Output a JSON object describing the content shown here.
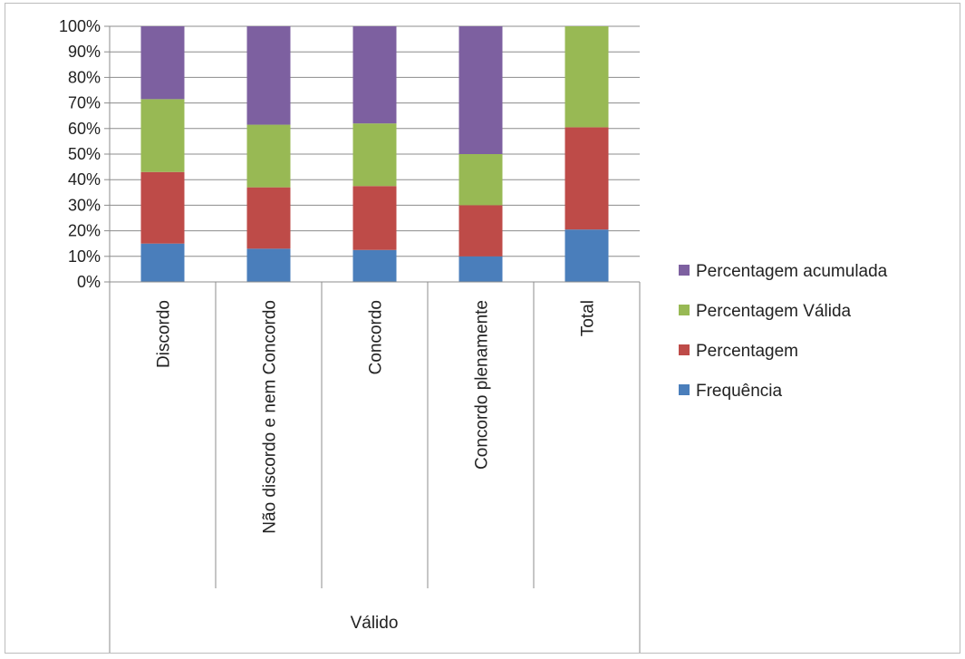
{
  "chart_data": {
    "type": "bar",
    "stacked": "percent",
    "grid": true,
    "legend_position": "right",
    "ylim": [
      0,
      100
    ],
    "yticks": [
      "0%",
      "10%",
      "20%",
      "30%",
      "40%",
      "50%",
      "60%",
      "70%",
      "80%",
      "90%",
      "100%"
    ],
    "categories": [
      "Discordo",
      "Não discordo e nem Concordo",
      "Concordo",
      "Concordo plenamente",
      "Total"
    ],
    "group_label": "Válido",
    "series": [
      {
        "name": "Frequência",
        "color": "#4a7ebb",
        "values": [
          15,
          13,
          12.5,
          10,
          20.5
        ]
      },
      {
        "name": "Percentagem",
        "color": "#be4b48",
        "values": [
          28,
          24,
          25,
          20,
          40
        ]
      },
      {
        "name": "Percentagem Válida",
        "color": "#98b954",
        "values": [
          28.5,
          24.5,
          24.5,
          20,
          39.5
        ]
      },
      {
        "name": "Percentagem acumulada",
        "color": "#7d60a0",
        "values": [
          28.5,
          38.5,
          38,
          50,
          0
        ]
      }
    ]
  }
}
